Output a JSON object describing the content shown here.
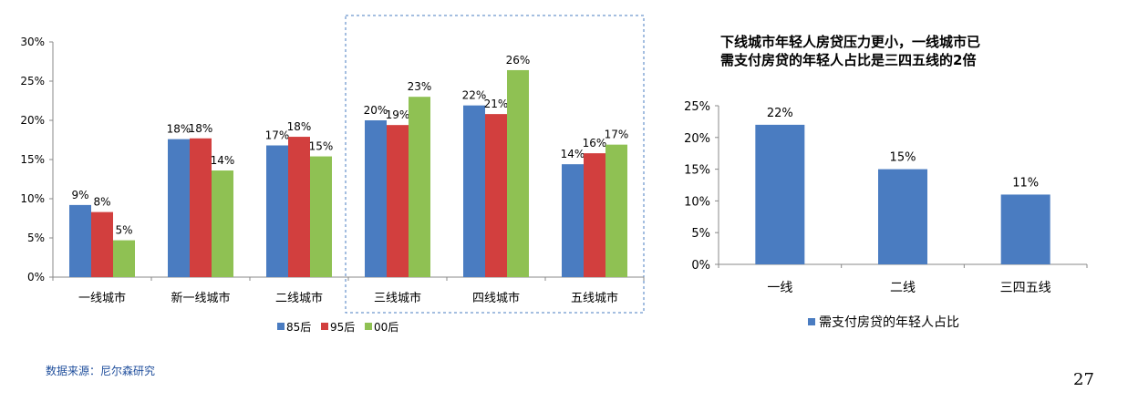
{
  "page": {
    "right_title_line1": "下线城市年轻人房贷压力更小，一线城市已",
    "right_title_line2": "需支付房贷的年轻人占比是三四五线的2倍",
    "source": "数据来源：尼尔森研究",
    "page_number": "27"
  },
  "chart_data": [
    {
      "type": "bar",
      "categories": [
        "一线城市",
        "新一线城市",
        "二线城市",
        "三线城市",
        "四线城市",
        "五线城市"
      ],
      "series": [
        {
          "name": "85后",
          "color": "#4a7cc1",
          "values": [
            9.2,
            17.6,
            16.8,
            20.0,
            21.9,
            14.4
          ],
          "labels": [
            "9%",
            "18%",
            "17%",
            "20%",
            "22%",
            "14%"
          ]
        },
        {
          "name": "95后",
          "color": "#d23f3e",
          "values": [
            8.3,
            17.7,
            17.9,
            19.4,
            20.8,
            15.8
          ],
          "labels": [
            "8%",
            "18%",
            "18%",
            "19%",
            "21%",
            "16%"
          ]
        },
        {
          "name": "00后",
          "color": "#8fc153",
          "values": [
            4.7,
            13.6,
            15.4,
            23.0,
            26.4,
            16.9
          ],
          "labels": [
            "5%",
            "14%",
            "15%",
            "23%",
            "26%",
            "17%"
          ]
        }
      ],
      "y_ticks": [
        "0%",
        "5%",
        "10%",
        "15%",
        "20%",
        "25%",
        "30%"
      ],
      "ylim": [
        0,
        30
      ],
      "highlight": [
        "三线城市",
        "四线城市",
        "五线城市"
      ],
      "legend_position": "bottom"
    },
    {
      "type": "bar",
      "categories": [
        "一线",
        "二线",
        "三四五线"
      ],
      "series": [
        {
          "name": "需支付房贷的年轻人占比",
          "color": "#4a7cc1",
          "values": [
            22,
            15,
            11
          ],
          "labels": [
            "22%",
            "15%",
            "11%"
          ]
        }
      ],
      "y_ticks": [
        "0%",
        "5%",
        "10%",
        "15%",
        "20%",
        "25%"
      ],
      "ylim": [
        0,
        25
      ],
      "legend_position": "bottom"
    }
  ]
}
